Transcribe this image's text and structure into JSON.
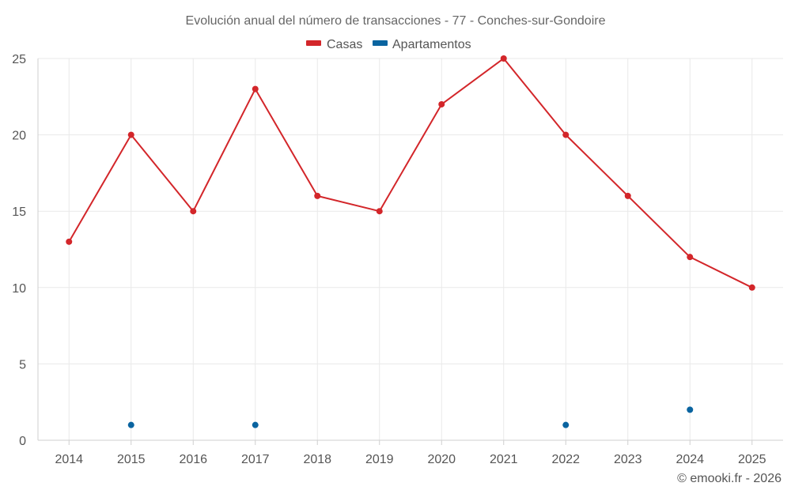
{
  "chart_data": {
    "type": "line",
    "title": "Evolución anual del número de transacciones - 77 - Conches-sur-Gondoire",
    "categories": [
      "2014",
      "2015",
      "2016",
      "2017",
      "2018",
      "2019",
      "2020",
      "2021",
      "2022",
      "2023",
      "2024",
      "2025"
    ],
    "series": [
      {
        "name": "Casas",
        "color": "#d3262a",
        "values": [
          13,
          20,
          15,
          23,
          16,
          15,
          22,
          25,
          20,
          16,
          12,
          10
        ]
      },
      {
        "name": "Apartamentos",
        "color": "#0a64a0",
        "values": [
          null,
          1,
          null,
          1,
          null,
          null,
          null,
          null,
          1,
          null,
          2,
          null
        ]
      }
    ],
    "ylim": [
      0,
      25
    ],
    "yticks": [
      0,
      5,
      10,
      15,
      20,
      25
    ],
    "xlabel": "",
    "ylabel": "",
    "grid": true,
    "legend_position": "top-center"
  },
  "credit": "© emooki.fr - 2026"
}
